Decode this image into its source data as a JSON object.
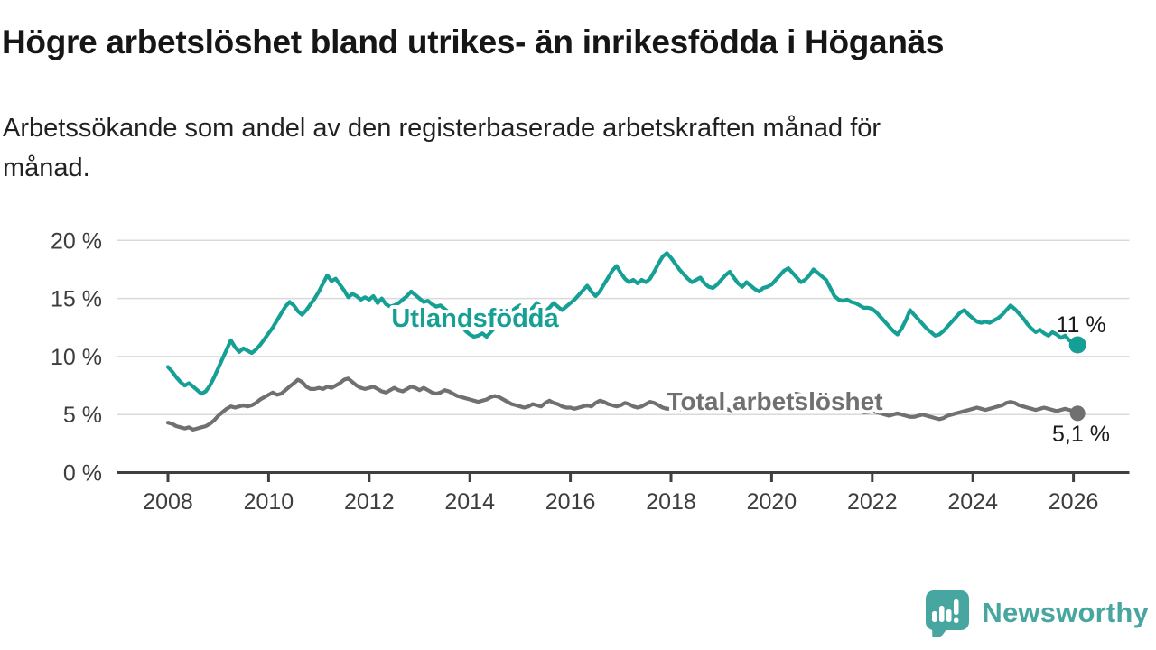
{
  "header": {
    "title": "Högre arbetslöshet bland utrikes- än inrikesfödda i Höganäs",
    "subtitle": "Arbetssökande som andel av den registerbaserade arbetskraften månad för månad.",
    "subtitle_lines": [
      "Arbetssökande som andel av den registerbaserade arbetskraften månad för",
      "månad."
    ]
  },
  "branding": {
    "wordmark": "Newsworthy",
    "logo_icon": "speech-bubble-bar-chart-icon",
    "brand_color": "#48a6a1"
  },
  "colors": {
    "accent_teal": "#16a095",
    "neutral_gray": "#707070",
    "axis": "#3f3f3f",
    "gridline": "#dadada",
    "text": "#1a1a1a"
  },
  "chart_data": {
    "type": "line",
    "title": "Högre arbetslöshet bland utrikes- än inrikesfödda i Höganäs",
    "subtitle": "Arbetssökande som andel av den registerbaserade arbetskraften månad för månad.",
    "x_unit": "month",
    "x_start": "2008-01",
    "x_end": "2026-02",
    "x_ticks": [
      2008,
      2010,
      2012,
      2014,
      2016,
      2018,
      2020,
      2022,
      2024,
      2026
    ],
    "y_ticks": [
      {
        "value": 0,
        "label": "0 %"
      },
      {
        "value": 5,
        "label": "5 %"
      },
      {
        "value": 10,
        "label": "10 %"
      },
      {
        "value": 15,
        "label": "15 %"
      },
      {
        "value": 20,
        "label": "20 %"
      }
    ],
    "ylim": [
      0,
      20.8
    ],
    "grid": true,
    "legend": "inline-labels",
    "series": [
      {
        "name": "Utlandsfödda",
        "color": "#16a095",
        "end_label": "11 %",
        "end_value": 11.0,
        "values": [
          9.1,
          8.7,
          8.2,
          7.8,
          7.5,
          7.7,
          7.4,
          7.1,
          6.8,
          7.0,
          7.5,
          8.2,
          9.0,
          9.8,
          10.6,
          11.4,
          10.8,
          10.4,
          10.7,
          10.5,
          10.3,
          10.6,
          11.0,
          11.5,
          12.0,
          12.5,
          13.1,
          13.7,
          14.3,
          14.7,
          14.4,
          13.9,
          13.6,
          14.0,
          14.5,
          15.0,
          15.6,
          16.3,
          17.0,
          16.5,
          16.7,
          16.2,
          15.7,
          15.1,
          15.4,
          15.2,
          14.9,
          15.1,
          14.9,
          15.2,
          14.6,
          15.0,
          14.5,
          14.3,
          14.4,
          14.6,
          14.9,
          15.2,
          15.6,
          15.3,
          15.0,
          14.7,
          14.8,
          14.5,
          14.3,
          14.4,
          14.1,
          13.8,
          13.4,
          13.0,
          12.6,
          12.2,
          11.9,
          11.7,
          11.8,
          12.0,
          11.7,
          12.1,
          12.5,
          12.9,
          13.2,
          13.6,
          13.9,
          14.2,
          14.4,
          14.1,
          13.8,
          14.2,
          14.6,
          14.3,
          13.9,
          14.2,
          14.6,
          14.3,
          14.0,
          14.3,
          14.6,
          14.9,
          15.3,
          15.7,
          16.1,
          15.6,
          15.2,
          15.6,
          16.2,
          16.8,
          17.4,
          17.8,
          17.2,
          16.7,
          16.4,
          16.6,
          16.3,
          16.6,
          16.4,
          16.7,
          17.3,
          18.0,
          18.6,
          18.9,
          18.5,
          18.0,
          17.5,
          17.1,
          16.7,
          16.4,
          16.6,
          16.8,
          16.3,
          16.0,
          15.9,
          16.2,
          16.6,
          17.0,
          17.3,
          16.8,
          16.3,
          16.0,
          16.4,
          16.1,
          15.8,
          15.6,
          15.9,
          16.0,
          16.2,
          16.6,
          17.0,
          17.4,
          17.6,
          17.2,
          16.8,
          16.4,
          16.6,
          17.0,
          17.5,
          17.2,
          16.9,
          16.6,
          15.9,
          15.2,
          14.9,
          14.8,
          14.9,
          14.7,
          14.6,
          14.4,
          14.2,
          14.2,
          14.1,
          13.8,
          13.4,
          13.0,
          12.6,
          12.2,
          11.9,
          12.4,
          13.1,
          14.0,
          13.6,
          13.2,
          12.8,
          12.4,
          12.1,
          11.8,
          11.9,
          12.2,
          12.6,
          13.0,
          13.4,
          13.8,
          14.0,
          13.6,
          13.3,
          13.0,
          12.9,
          13.0,
          12.9,
          13.1,
          13.3,
          13.6,
          14.0,
          14.4,
          14.1,
          13.7,
          13.3,
          12.8,
          12.4,
          12.1,
          12.3,
          12.0,
          11.8,
          12.1,
          11.9,
          11.6,
          11.8,
          11.4,
          11.2,
          11.0
        ]
      },
      {
        "name": "Total arbetslöshet",
        "color": "#707070",
        "end_label": "5,1 %",
        "end_value": 5.1,
        "values": [
          4.3,
          4.2,
          4.0,
          3.9,
          3.8,
          3.9,
          3.7,
          3.8,
          3.9,
          4.0,
          4.2,
          4.5,
          4.9,
          5.2,
          5.5,
          5.7,
          5.6,
          5.7,
          5.8,
          5.7,
          5.8,
          6.0,
          6.3,
          6.5,
          6.7,
          6.9,
          6.7,
          6.8,
          7.1,
          7.4,
          7.7,
          8.0,
          7.8,
          7.4,
          7.2,
          7.2,
          7.3,
          7.2,
          7.4,
          7.3,
          7.5,
          7.7,
          8.0,
          8.1,
          7.8,
          7.5,
          7.3,
          7.2,
          7.3,
          7.4,
          7.2,
          7.0,
          6.9,
          7.1,
          7.3,
          7.1,
          7.0,
          7.2,
          7.4,
          7.3,
          7.1,
          7.3,
          7.1,
          6.9,
          6.8,
          6.9,
          7.1,
          7.0,
          6.8,
          6.6,
          6.5,
          6.4,
          6.3,
          6.2,
          6.1,
          6.2,
          6.3,
          6.5,
          6.6,
          6.5,
          6.3,
          6.1,
          5.9,
          5.8,
          5.7,
          5.6,
          5.7,
          5.9,
          5.8,
          5.7,
          6.0,
          6.2,
          6.0,
          5.9,
          5.7,
          5.6,
          5.6,
          5.5,
          5.6,
          5.7,
          5.8,
          5.7,
          6.0,
          6.2,
          6.1,
          5.9,
          5.8,
          5.7,
          5.8,
          6.0,
          5.9,
          5.7,
          5.6,
          5.7,
          5.9,
          6.1,
          6.0,
          5.8,
          5.6,
          5.5,
          5.5,
          5.6,
          5.5,
          5.4,
          5.3,
          5.4,
          5.6,
          5.7,
          5.6,
          5.5,
          5.4,
          5.3,
          5.4,
          5.5,
          5.4,
          5.3,
          5.3,
          5.4,
          5.6,
          5.7,
          5.6,
          5.5,
          5.4,
          5.5,
          5.6,
          5.8,
          6.1,
          6.5,
          6.7,
          6.8,
          6.8,
          6.7,
          6.5,
          6.3,
          6.2,
          6.2,
          6.3,
          6.2,
          6.1,
          5.9,
          5.8,
          5.7,
          5.8,
          5.7,
          5.5,
          5.3,
          5.2,
          5.2,
          5.3,
          5.2,
          5.1,
          5.0,
          4.9,
          5.0,
          5.1,
          5.0,
          4.9,
          4.8,
          4.8,
          4.9,
          5.0,
          4.9,
          4.8,
          4.7,
          4.6,
          4.7,
          4.9,
          5.0,
          5.1,
          5.2,
          5.3,
          5.4,
          5.5,
          5.6,
          5.5,
          5.4,
          5.5,
          5.6,
          5.7,
          5.8,
          6.0,
          6.1,
          6.0,
          5.8,
          5.7,
          5.6,
          5.5,
          5.4,
          5.5,
          5.6,
          5.5,
          5.4,
          5.3,
          5.4,
          5.5,
          5.4,
          5.3,
          5.1
        ]
      }
    ]
  }
}
